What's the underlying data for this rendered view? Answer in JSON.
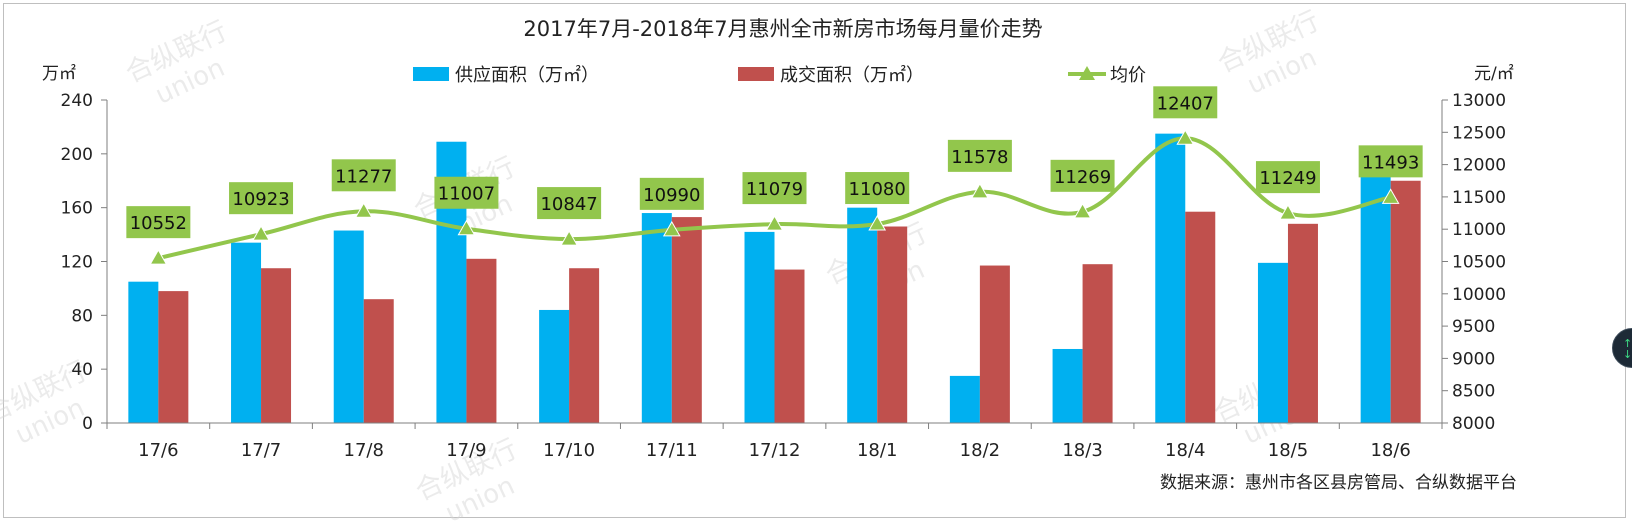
{
  "chart_data": {
    "type": "bar+line",
    "title": "2017年7月-2018年7月惠州全市新房市场每月量价走势",
    "categories": [
      "17/6",
      "17/7",
      "17/8",
      "17/9",
      "17/10",
      "17/11",
      "17/12",
      "18/1",
      "18/2",
      "18/3",
      "18/4",
      "18/5",
      "18/6"
    ],
    "series": [
      {
        "name": "供应面积（万㎡）",
        "type": "bar",
        "axis": "left",
        "color": "#00b0f0",
        "values": [
          105,
          134,
          143,
          209,
          84,
          156,
          142,
          160,
          35,
          55,
          215,
          119,
          183
        ]
      },
      {
        "name": "成交面积（万㎡）",
        "type": "bar",
        "axis": "left",
        "color": "#c0504d",
        "values": [
          98,
          115,
          92,
          122,
          115,
          153,
          114,
          146,
          117,
          118,
          157,
          148,
          180
        ]
      },
      {
        "name": "均价",
        "type": "line",
        "axis": "right",
        "color": "#92c64c",
        "values": [
          10552,
          10923,
          11277,
          11007,
          10847,
          10990,
          11079,
          11080,
          11578,
          11269,
          12407,
          11249,
          11493
        ]
      }
    ],
    "price_labels": [
      "10552",
      "10923",
      "11277",
      "11007",
      "10847",
      "10990",
      "11079",
      "11080",
      "11578",
      "11269",
      "12407",
      "11249",
      "11493"
    ],
    "y_left": {
      "unit": "万㎡",
      "min": 0,
      "max": 240,
      "ticks": [
        "0",
        "40",
        "80",
        "120",
        "160",
        "200",
        "240"
      ]
    },
    "y_right": {
      "unit": "元/㎡",
      "min": 8000,
      "max": 13000,
      "ticks": [
        "8000",
        "8500",
        "9000",
        "9500",
        "10000",
        "10500",
        "11000",
        "11500",
        "12000",
        "12500",
        "13000"
      ]
    },
    "legend_position": "top-center",
    "source": "数据来源：惠州市各区县房管局、合纵数据平台",
    "watermark": {
      "cn": "合纵联行",
      "en": "union"
    }
  }
}
